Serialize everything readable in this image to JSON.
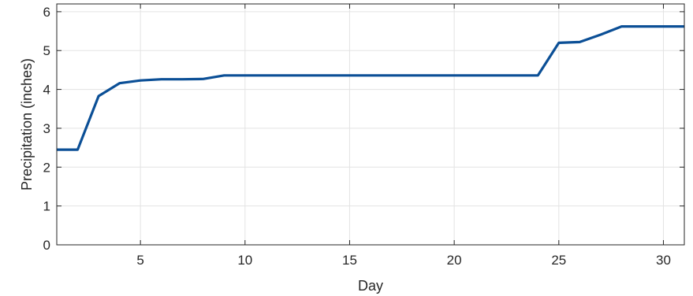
{
  "chart_data": {
    "type": "line",
    "title": "",
    "xlabel": "Day",
    "ylabel": "Precipitation (inches)",
    "xlim": [
      1,
      31
    ],
    "ylim": [
      0,
      6.2
    ],
    "xticks": [
      5,
      10,
      15,
      20,
      25,
      30
    ],
    "yticks": [
      0,
      1,
      2,
      3,
      4,
      5,
      6
    ],
    "grid": true,
    "legend": "none",
    "series": [
      {
        "color": "#0b4f96",
        "x": [
          1,
          2,
          3,
          4,
          5,
          6,
          7,
          8,
          9,
          10,
          11,
          12,
          13,
          14,
          15,
          16,
          17,
          18,
          19,
          20,
          21,
          22,
          23,
          24,
          25,
          26,
          27,
          28,
          29,
          30,
          31
        ],
        "y": [
          2.45,
          2.45,
          3.83,
          4.16,
          4.23,
          4.26,
          4.26,
          4.27,
          4.36,
          4.36,
          4.36,
          4.36,
          4.36,
          4.36,
          4.36,
          4.36,
          4.36,
          4.36,
          4.36,
          4.36,
          4.36,
          4.36,
          4.36,
          4.36,
          5.2,
          5.22,
          5.41,
          5.62,
          5.62,
          5.62,
          5.62
        ]
      }
    ]
  }
}
